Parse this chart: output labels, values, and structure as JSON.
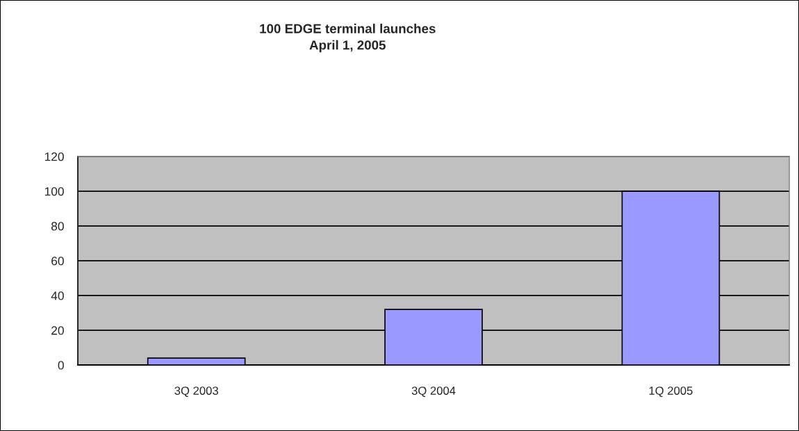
{
  "chart_data": {
    "type": "bar",
    "title": "100 EDGE terminal launches\nApril 1, 2005",
    "categories": [
      "3Q 2003",
      "3Q 2004",
      "1Q 2005"
    ],
    "values": [
      4,
      32,
      100
    ],
    "color": "#9999ff",
    "ylim": [
      0,
      120
    ],
    "yticks": [
      0,
      20,
      40,
      60,
      80,
      100,
      120
    ],
    "grid": "y"
  }
}
